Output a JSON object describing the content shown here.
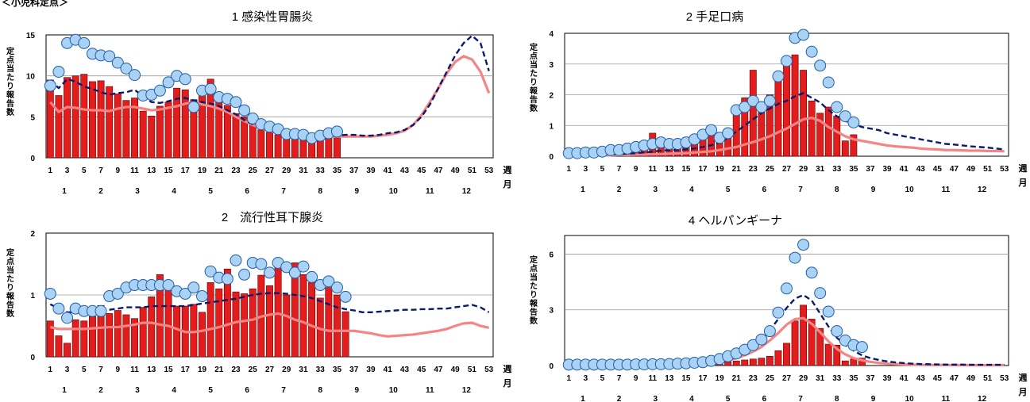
{
  "page": {
    "caption": "＜小児科定点＞"
  },
  "axis_text": {
    "ylabel_chars": [
      "定",
      "点",
      "当",
      "た",
      "り",
      "報",
      "告",
      "数"
    ],
    "week_label": "週",
    "month_label": "月"
  },
  "chart_data": [
    {
      "id": "chart1",
      "type": "bar",
      "title": "1 感染性胃腸炎",
      "ylim": [
        0,
        15
      ],
      "yticks": [
        0,
        5,
        10,
        15
      ],
      "grid": true,
      "xlabels": [
        "1",
        "3",
        "5",
        "7",
        "9",
        "11",
        "13",
        "15",
        "17",
        "19",
        "21",
        "23",
        "25",
        "27",
        "29",
        "31",
        "33",
        "35",
        "37",
        "39",
        "41",
        "43",
        "45",
        "47",
        "49",
        "51",
        "53"
      ],
      "months": [
        "1",
        "2",
        "3",
        "4",
        "5",
        "6",
        "7",
        "8",
        "9",
        "10",
        "11",
        "12"
      ],
      "series": [
        {
          "values": [
            9.5,
            7.6,
            9.8,
            10.0,
            10.2,
            9.3,
            9.4,
            8.7,
            7.8,
            7.0,
            7.3,
            5.7,
            5.1,
            6.3,
            6.8,
            8.5,
            8.3,
            7.1,
            8.6,
            9.6,
            6.8,
            6.4,
            5.4,
            5.0,
            4.2,
            3.4,
            3.1,
            2.8,
            2.6,
            2.6,
            2.3,
            2.2,
            2.6,
            2.7,
            2.6
          ]
        },
        {
          "values": [
            8.8,
            10.5,
            14.0,
            14.4,
            14.0,
            12.7,
            12.5,
            12.4,
            11.6,
            10.9,
            10.1,
            7.6,
            7.7,
            8.2,
            9.2,
            10.0,
            9.6,
            6.2,
            8.2,
            8.4,
            7.4,
            7.2,
            6.8,
            5.8,
            4.8,
            4.1,
            3.8,
            3.5,
            2.9,
            2.9,
            2.8,
            2.4,
            2.7,
            3.0,
            3.2
          ]
        },
        {
          "values": [
            9.5,
            8.5,
            9.6,
            9.3,
            8.7,
            8.4,
            8.0,
            7.7,
            7.9,
            8.0,
            8.3,
            7.5,
            6.8,
            6.7,
            6.9,
            7.2,
            7.3,
            7.0,
            6.8,
            6.6,
            6.3,
            5.8,
            5.3,
            4.6,
            4.1,
            3.7,
            3.4,
            3.1,
            2.9,
            2.8,
            2.7,
            2.8,
            2.8,
            2.8,
            2.7,
            2.8,
            2.8,
            2.7,
            2.7,
            2.8,
            3.0,
            3.1,
            3.4,
            4.0,
            5.0,
            6.5,
            8.5,
            10.5,
            12.5,
            14.0,
            14.9,
            14.0,
            10.6
          ]
        },
        {
          "values": [
            6.8,
            5.6,
            6.2,
            6.1,
            5.9,
            5.8,
            5.8,
            5.7,
            6.0,
            6.2,
            6.2,
            6.0,
            5.8,
            5.9,
            6.1,
            6.3,
            6.6,
            6.8,
            6.5,
            6.3,
            6.0,
            5.6,
            5.0,
            4.5,
            4.0,
            3.6,
            3.3,
            3.0,
            2.8,
            2.7,
            2.6,
            2.6,
            2.6,
            2.6,
            2.6,
            2.6,
            2.6,
            2.6,
            2.6,
            2.7,
            2.8,
            3.0,
            3.3,
            4.0,
            5.2,
            6.8,
            8.5,
            10.3,
            11.7,
            12.4,
            12.0,
            10.5,
            7.9
          ]
        }
      ]
    },
    {
      "id": "chart2",
      "type": "bar",
      "title": "2 手足口病",
      "ylim": [
        0,
        4
      ],
      "yticks": [
        0,
        1,
        2,
        3,
        4
      ],
      "grid": true,
      "xlabels": [
        "1",
        "3",
        "5",
        "7",
        "9",
        "11",
        "13",
        "15",
        "17",
        "19",
        "21",
        "23",
        "25",
        "27",
        "29",
        "31",
        "33",
        "35",
        "37",
        "39",
        "41",
        "43",
        "45",
        "47",
        "49",
        "51",
        "53"
      ],
      "months": [
        "1",
        "2",
        "3",
        "4",
        "5",
        "6",
        "7",
        "8",
        "9",
        "10",
        "11",
        "12"
      ],
      "series": [
        {
          "values": [
            0.05,
            0.05,
            0.05,
            0.05,
            0.05,
            0.05,
            0.1,
            0.1,
            0.15,
            0.25,
            0.75,
            0.35,
            0.25,
            0.3,
            0.35,
            0.45,
            0.85,
            1.0,
            0.55,
            0.65,
            1.65,
            1.9,
            2.8,
            1.6,
            2.0,
            2.7,
            3.2,
            3.3,
            2.8,
            1.8,
            1.4,
            1.6,
            1.3,
            0.5,
            0.7
          ]
        },
        {
          "values": [
            0.1,
            0.1,
            0.12,
            0.12,
            0.15,
            0.2,
            0.2,
            0.25,
            0.3,
            0.35,
            0.4,
            0.45,
            0.4,
            0.4,
            0.45,
            0.55,
            0.7,
            0.85,
            0.6,
            0.75,
            1.5,
            1.6,
            1.8,
            1.6,
            1.8,
            2.6,
            3.1,
            3.85,
            3.95,
            3.4,
            2.95,
            2.4,
            1.6,
            1.3,
            1.1
          ]
        },
        {
          "values": [
            0.05,
            0.05,
            0.05,
            0.05,
            0.06,
            0.06,
            0.07,
            0.08,
            0.1,
            0.12,
            0.15,
            0.18,
            0.2,
            0.2,
            0.22,
            0.25,
            0.3,
            0.36,
            0.45,
            0.6,
            0.8,
            1.0,
            1.2,
            1.4,
            1.55,
            1.7,
            1.8,
            1.95,
            2.05,
            1.9,
            1.75,
            1.5,
            1.3,
            1.15,
            1.05,
            0.95,
            0.9,
            0.85,
            0.75,
            0.7,
            0.65,
            0.6,
            0.55,
            0.5,
            0.45,
            0.4,
            0.38,
            0.35,
            0.32,
            0.3,
            0.28,
            0.25,
            0.22
          ]
        },
        {
          "values": [
            0.03,
            0.03,
            0.03,
            0.03,
            0.03,
            0.03,
            0.04,
            0.04,
            0.05,
            0.05,
            0.06,
            0.07,
            0.08,
            0.09,
            0.1,
            0.12,
            0.14,
            0.16,
            0.2,
            0.25,
            0.3,
            0.38,
            0.46,
            0.55,
            0.65,
            0.78,
            0.9,
            1.05,
            1.2,
            1.25,
            1.15,
            0.95,
            0.8,
            0.65,
            0.55,
            0.5,
            0.45,
            0.4,
            0.35,
            0.32,
            0.3,
            0.28,
            0.25,
            0.23,
            0.22,
            0.2,
            0.2,
            0.19,
            0.18,
            0.18,
            0.17,
            0.17,
            0.16
          ]
        }
      ]
    },
    {
      "id": "chart3",
      "type": "bar",
      "title": "2　流行性耳下腺炎",
      "ylim": [
        0,
        2
      ],
      "yticks": [
        0,
        1,
        2
      ],
      "grid": true,
      "xlabels": [
        "1",
        "3",
        "5",
        "7",
        "9",
        "11",
        "13",
        "15",
        "17",
        "19",
        "21",
        "23",
        "25",
        "27",
        "29",
        "31",
        "33",
        "35",
        "37",
        "39",
        "41",
        "43",
        "45",
        "47",
        "49",
        "51",
        "53"
      ],
      "months": [
        "1",
        "2",
        "3",
        "4",
        "5",
        "6",
        "7",
        "8",
        "9",
        "10",
        "11",
        "12"
      ],
      "series": [
        {
          "values": [
            0.58,
            0.34,
            0.22,
            0.6,
            0.58,
            0.65,
            0.83,
            0.7,
            0.75,
            0.68,
            0.62,
            0.8,
            0.97,
            1.33,
            1.16,
            0.82,
            0.82,
            0.85,
            0.72,
            1.2,
            1.1,
            1.42,
            1.05,
            1.02,
            1.1,
            1.32,
            1.15,
            1.5,
            1.0,
            1.52,
            1.33,
            1.2,
            0.95,
            1.12,
            1.0,
            0.73
          ]
        },
        {
          "values": [
            1.02,
            0.78,
            0.63,
            0.78,
            0.74,
            0.74,
            0.74,
            0.98,
            1.02,
            1.12,
            1.16,
            1.16,
            1.16,
            1.16,
            1.16,
            1.06,
            1.02,
            1.12,
            0.98,
            1.38,
            1.28,
            1.26,
            1.56,
            1.33,
            1.52,
            1.5,
            1.36,
            1.52,
            1.45,
            1.36,
            1.46,
            1.29,
            1.16,
            1.22,
            1.12,
            0.97
          ]
        },
        {
          "values": [
            0.85,
            0.78,
            0.72,
            0.72,
            0.7,
            0.72,
            0.74,
            0.76,
            0.78,
            0.8,
            0.8,
            0.8,
            0.82,
            0.82,
            0.82,
            0.82,
            0.82,
            0.84,
            0.86,
            0.88,
            0.9,
            0.92,
            0.94,
            0.97,
            1.0,
            1.02,
            1.03,
            1.03,
            1.02,
            1.0,
            0.98,
            0.95,
            0.9,
            0.85,
            0.8,
            0.77,
            0.75,
            0.72,
            0.72,
            0.73,
            0.74,
            0.75,
            0.76,
            0.76,
            0.77,
            0.77,
            0.78,
            0.78,
            0.8,
            0.82,
            0.84,
            0.8,
            0.72
          ]
        },
        {
          "values": [
            0.48,
            0.45,
            0.45,
            0.45,
            0.45,
            0.46,
            0.47,
            0.48,
            0.48,
            0.5,
            0.52,
            0.55,
            0.55,
            0.52,
            0.5,
            0.45,
            0.4,
            0.4,
            0.42,
            0.45,
            0.48,
            0.52,
            0.56,
            0.58,
            0.6,
            0.65,
            0.68,
            0.7,
            0.66,
            0.6,
            0.56,
            0.5,
            0.45,
            0.42,
            0.42,
            0.42,
            0.42,
            0.4,
            0.38,
            0.35,
            0.33,
            0.34,
            0.35,
            0.36,
            0.38,
            0.4,
            0.42,
            0.45,
            0.5,
            0.54,
            0.55,
            0.5,
            0.47
          ]
        }
      ]
    },
    {
      "id": "chart4",
      "type": "bar",
      "title": "4 ヘルパンギーナ",
      "ylim": [
        0,
        7
      ],
      "yticks": [
        0,
        3,
        6
      ],
      "grid": true,
      "xlabels": [
        "1",
        "3",
        "5",
        "7",
        "9",
        "11",
        "13",
        "15",
        "17",
        "19",
        "21",
        "23",
        "25",
        "27",
        "29",
        "31",
        "33",
        "35",
        "37",
        "39",
        "41",
        "43",
        "45",
        "47",
        "49",
        "51",
        "53"
      ],
      "months": [
        "1",
        "2",
        "3",
        "4",
        "5",
        "6",
        "7",
        "8",
        "9",
        "10",
        "11",
        "12"
      ],
      "series": [
        {
          "values": [
            0.02,
            0.02,
            0.02,
            0.02,
            0.02,
            0.02,
            0.02,
            0.02,
            0.02,
            0.02,
            0.02,
            0.02,
            0.02,
            0.03,
            0.03,
            0.05,
            0.05,
            0.1,
            0.15,
            0.2,
            0.25,
            0.3,
            0.35,
            0.4,
            0.5,
            0.8,
            1.2,
            2.4,
            3.25,
            2.5,
            2.0,
            1.15,
            1.1,
            0.25,
            0.35,
            0.4
          ]
        },
        {
          "values": [
            0.05,
            0.05,
            0.05,
            0.05,
            0.05,
            0.05,
            0.05,
            0.05,
            0.06,
            0.06,
            0.07,
            0.07,
            0.08,
            0.1,
            0.12,
            0.15,
            0.18,
            0.25,
            0.35,
            0.5,
            0.65,
            0.85,
            1.1,
            1.4,
            1.85,
            2.85,
            4.15,
            5.8,
            6.5,
            5.0,
            3.9,
            2.9,
            1.85,
            1.35,
            1.1,
            1.0
          ]
        },
        {
          "values": [
            0.02,
            0.02,
            0.02,
            0.02,
            0.02,
            0.02,
            0.02,
            0.02,
            0.03,
            0.03,
            0.04,
            0.05,
            0.06,
            0.08,
            0.1,
            0.13,
            0.17,
            0.22,
            0.3,
            0.4,
            0.55,
            0.75,
            1.0,
            1.4,
            1.9,
            2.5,
            3.1,
            3.6,
            3.8,
            3.5,
            2.8,
            2.1,
            1.5,
            1.1,
            0.8,
            0.55,
            0.4,
            0.3,
            0.22,
            0.17,
            0.13,
            0.1,
            0.08,
            0.07,
            0.06,
            0.05,
            0.05,
            0.05,
            0.04,
            0.04,
            0.04,
            0.04,
            0.04
          ]
        },
        {
          "values": [
            0.01,
            0.01,
            0.01,
            0.01,
            0.01,
            0.01,
            0.01,
            0.01,
            0.02,
            0.02,
            0.02,
            0.03,
            0.04,
            0.05,
            0.07,
            0.09,
            0.12,
            0.16,
            0.22,
            0.3,
            0.4,
            0.55,
            0.75,
            1.0,
            1.35,
            1.75,
            2.2,
            2.5,
            2.55,
            2.25,
            1.8,
            1.3,
            0.9,
            0.6,
            0.4,
            0.28,
            0.2,
            0.14,
            0.1,
            0.08,
            0.06,
            0.05,
            0.04,
            0.03,
            0.03,
            0.03,
            0.02,
            0.02,
            0.02,
            0.02,
            0.02,
            0.02,
            0.02
          ]
        }
      ]
    }
  ]
}
